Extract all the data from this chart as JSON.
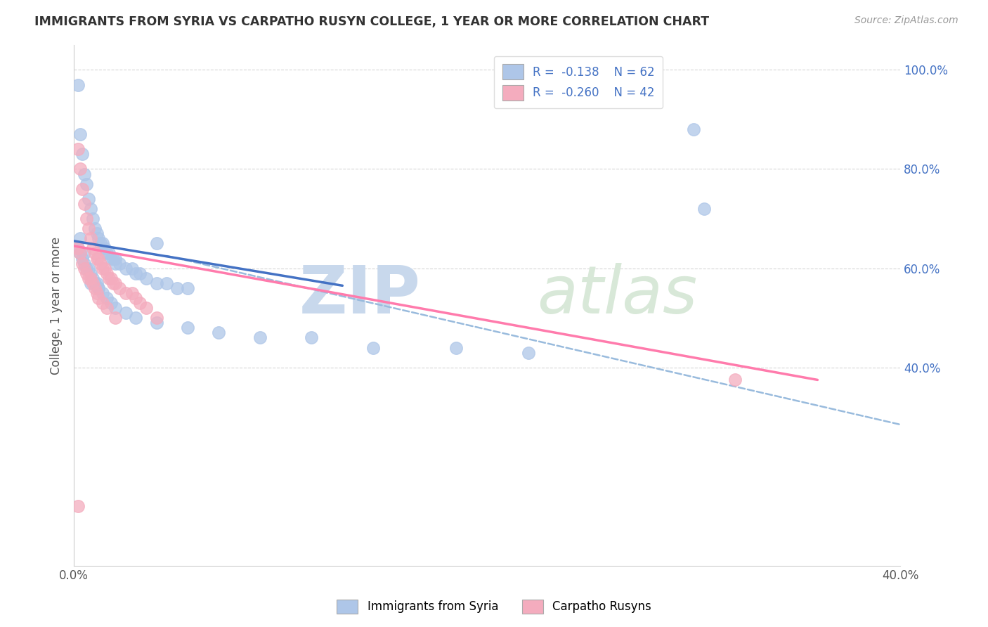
{
  "title": "IMMIGRANTS FROM SYRIA VS CARPATHO RUSYN COLLEGE, 1 YEAR OR MORE CORRELATION CHART",
  "source": "Source: ZipAtlas.com",
  "ylabel": "College, 1 year or more",
  "xlim": [
    0.0,
    0.4
  ],
  "ylim": [
    0.0,
    1.05
  ],
  "xticklabels": [
    "0.0%",
    "",
    "",
    "",
    "40.0%"
  ],
  "xtick_vals": [
    0.0,
    0.1,
    0.2,
    0.3,
    0.4
  ],
  "legend_r1": "R =  -0.138",
  "legend_n1": "N = 62",
  "legend_r2": "R =  -0.260",
  "legend_n2": "N = 42",
  "color_blue": "#AEC6E8",
  "color_pink": "#F4ACBE",
  "line_blue": "#4472C4",
  "line_pink": "#FF7BAC",
  "line_dashed_color": "#99BBDD",
  "grid_color": "#CCCCCC",
  "right_tick_color": "#4472C4",
  "blue_line_x0": 0.0,
  "blue_line_y0": 0.655,
  "blue_line_x1": 0.13,
  "blue_line_y1": 0.565,
  "pink_line_x0": 0.0,
  "pink_line_y0": 0.645,
  "pink_line_x1": 0.36,
  "pink_line_y1": 0.375,
  "dash_line_x0": 0.045,
  "dash_line_y0": 0.625,
  "dash_line_x1": 0.4,
  "dash_line_y1": 0.285,
  "syria_points_x": [
    0.002,
    0.003,
    0.004,
    0.005,
    0.006,
    0.007,
    0.008,
    0.009,
    0.01,
    0.011,
    0.012,
    0.013,
    0.014,
    0.015,
    0.016,
    0.017,
    0.018,
    0.019,
    0.02,
    0.022,
    0.025,
    0.028,
    0.03,
    0.032,
    0.035,
    0.04,
    0.045,
    0.05,
    0.055,
    0.002,
    0.003,
    0.004,
    0.005,
    0.006,
    0.007,
    0.008,
    0.009,
    0.01,
    0.011,
    0.012,
    0.014,
    0.016,
    0.018,
    0.02,
    0.025,
    0.03,
    0.04,
    0.055,
    0.07,
    0.09,
    0.115,
    0.145,
    0.185,
    0.22,
    0.003,
    0.005,
    0.008,
    0.012,
    0.02,
    0.04,
    0.3,
    0.305
  ],
  "syria_points_y": [
    0.97,
    0.87,
    0.83,
    0.79,
    0.77,
    0.74,
    0.72,
    0.7,
    0.68,
    0.67,
    0.66,
    0.65,
    0.65,
    0.64,
    0.63,
    0.63,
    0.62,
    0.62,
    0.61,
    0.61,
    0.6,
    0.6,
    0.59,
    0.59,
    0.58,
    0.57,
    0.57,
    0.56,
    0.56,
    0.64,
    0.63,
    0.62,
    0.61,
    0.6,
    0.6,
    0.59,
    0.58,
    0.57,
    0.57,
    0.56,
    0.55,
    0.54,
    0.53,
    0.52,
    0.51,
    0.5,
    0.49,
    0.48,
    0.47,
    0.46,
    0.46,
    0.44,
    0.44,
    0.43,
    0.66,
    0.63,
    0.57,
    0.56,
    0.62,
    0.65,
    0.88,
    0.72
  ],
  "rusyn_points_x": [
    0.002,
    0.003,
    0.004,
    0.005,
    0.006,
    0.007,
    0.008,
    0.009,
    0.01,
    0.011,
    0.012,
    0.013,
    0.014,
    0.015,
    0.016,
    0.017,
    0.018,
    0.019,
    0.02,
    0.022,
    0.025,
    0.028,
    0.03,
    0.032,
    0.035,
    0.04,
    0.002,
    0.003,
    0.004,
    0.005,
    0.006,
    0.007,
    0.008,
    0.009,
    0.01,
    0.011,
    0.012,
    0.014,
    0.016,
    0.02,
    0.32,
    0.002
  ],
  "rusyn_points_y": [
    0.84,
    0.8,
    0.76,
    0.73,
    0.7,
    0.68,
    0.66,
    0.64,
    0.63,
    0.62,
    0.62,
    0.61,
    0.6,
    0.6,
    0.59,
    0.58,
    0.58,
    0.57,
    0.57,
    0.56,
    0.55,
    0.55,
    0.54,
    0.53,
    0.52,
    0.5,
    0.64,
    0.63,
    0.61,
    0.6,
    0.59,
    0.58,
    0.58,
    0.57,
    0.56,
    0.55,
    0.54,
    0.53,
    0.52,
    0.5,
    0.375,
    0.12
  ]
}
